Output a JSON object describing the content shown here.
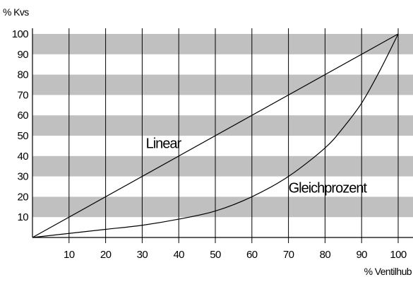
{
  "chart_data": {
    "type": "line",
    "ylabel": "% Kvs",
    "xlabel": "% Ventilhub",
    "xlim": [
      0,
      100
    ],
    "ylim": [
      0,
      100
    ],
    "x_ticks": [
      10,
      20,
      30,
      40,
      50,
      60,
      70,
      80,
      90,
      100
    ],
    "y_ticks": [
      10,
      20,
      30,
      40,
      50,
      60,
      70,
      80,
      90,
      100
    ],
    "grid": "alternating horizontal gray bands with vertical gridlines",
    "band_color": "#c0c0c0",
    "series": [
      {
        "name": "Linear",
        "x": [
          0,
          100
        ],
        "y": [
          0,
          100
        ]
      },
      {
        "name": "Gleichprozent",
        "x": [
          0,
          10,
          20,
          30,
          40,
          50,
          60,
          70,
          80,
          85,
          90,
          95,
          100
        ],
        "y": [
          0,
          2,
          4,
          6,
          9,
          13,
          20,
          30,
          44,
          54,
          66,
          82,
          100
        ]
      }
    ],
    "annotations": [
      {
        "text": "Linear",
        "x": 31,
        "y": 44
      },
      {
        "text": "Gleichprozent",
        "x": 70,
        "y": 22
      }
    ]
  }
}
